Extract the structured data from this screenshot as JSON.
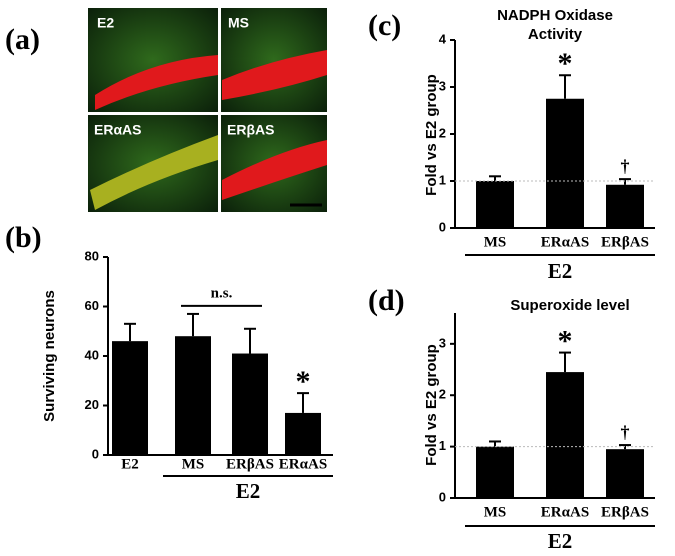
{
  "figure": {
    "panel_labels": [
      "(a)",
      "(b)",
      "(c)",
      "(d)"
    ],
    "micrographs": [
      "E2",
      "MS",
      "ERαAS",
      "ERβAS"
    ]
  },
  "chart_data": [
    {
      "type": "bar",
      "y_label": "Surviving neurons",
      "categories": [
        "E2",
        "MS",
        "ERβAS",
        "ERαAS"
      ],
      "values": [
        46,
        48,
        41,
        17
      ],
      "errors": [
        7,
        9,
        10,
        8
      ],
      "color": "#000000",
      "ylim": [
        0,
        80
      ],
      "yticks": [
        0,
        20,
        40,
        60,
        80
      ],
      "group": {
        "label": "E2",
        "categories": [
          "MS",
          "ERβAS",
          "ERαAS"
        ]
      },
      "annotations": [
        {
          "text": "n.s.",
          "between": [
            "MS",
            "ERβAS"
          ]
        },
        {
          "text": "*",
          "at": "ERαAS"
        }
      ]
    },
    {
      "type": "bar",
      "title": "NADPH Oxidase Activity",
      "y_label": "Fold vs E2 group",
      "categories": [
        "MS",
        "ERαAS",
        "ERβAS"
      ],
      "values": [
        1.0,
        2.75,
        0.92
      ],
      "errors": [
        0.1,
        0.5,
        0.12
      ],
      "color": "#000000",
      "ylim": [
        0,
        4
      ],
      "yticks": [
        0,
        1,
        2,
        3,
        4
      ],
      "ref_line": 1,
      "group": {
        "label": "E2",
        "categories": [
          "MS",
          "ERαAS",
          "ERβAS"
        ]
      },
      "annotations": [
        {
          "text": "*",
          "at": "ERαAS"
        },
        {
          "text": "†",
          "at": "ERβAS"
        }
      ]
    },
    {
      "type": "bar",
      "title": "Superoxide level",
      "y_label": "Fold vs E2 group",
      "categories": [
        "MS",
        "ERαAS",
        "ERβAS"
      ],
      "values": [
        1.0,
        2.45,
        0.95
      ],
      "errors": [
        0.1,
        0.38,
        0.08
      ],
      "color": "#000000",
      "ylim": [
        0,
        3.6
      ],
      "yticks": [
        0,
        1,
        2,
        3
      ],
      "ref_line": 1,
      "group": {
        "label": "E2",
        "categories": [
          "MS",
          "ERαAS",
          "ERβAS"
        ]
      },
      "annotations": [
        {
          "text": "*",
          "at": "ERαAS"
        },
        {
          "text": "†",
          "at": "ERβAS"
        }
      ]
    }
  ]
}
